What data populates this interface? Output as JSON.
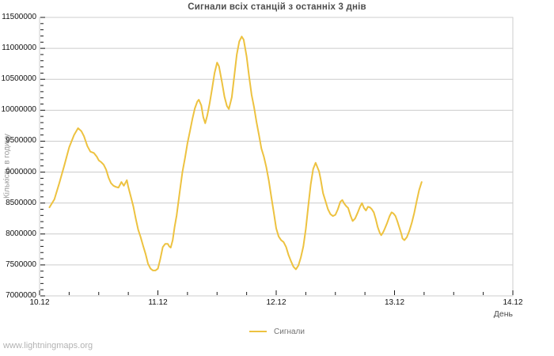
{
  "watermark": "www.lightningmaps.org",
  "chart_data": {
    "type": "line",
    "title": "Сигнали всіх станцій з останніх 3 днів",
    "xlabel": "День",
    "ylabel": "Кількість в годину",
    "legend": [
      "Сигнали"
    ],
    "legend_position": "bottom-center",
    "grid": true,
    "x_tick_labels": [
      "10.12",
      "11.12",
      "12.12",
      "13.12",
      "14.12"
    ],
    "x_range_hours": [
      0,
      96
    ],
    "x_major_step_hours": 24,
    "x_minor_step_hours": 6,
    "ylim": [
      7000000,
      11500000
    ],
    "y_tick_step": 500000,
    "y_minor_step": 100000,
    "y_tick_labels": [
      "7000000",
      "7500000",
      "8000000",
      "8500000",
      "9000000",
      "9500000",
      "10000000",
      "10500000",
      "11000000",
      "11500000"
    ],
    "line_color": "#edc240",
    "grid_color": "#cccccc",
    "tick_color": "#1a1a1a",
    "series": [
      {
        "name": "Сигнали",
        "x_unit": "hours from 10.12 00:00",
        "points": [
          [
            2.0,
            8430000
          ],
          [
            3.0,
            8560000
          ],
          [
            4.0,
            8820000
          ],
          [
            5.0,
            9100000
          ],
          [
            6.0,
            9400000
          ],
          [
            7.0,
            9600000
          ],
          [
            7.8,
            9710000
          ],
          [
            8.5,
            9660000
          ],
          [
            9.0,
            9580000
          ],
          [
            9.7,
            9420000
          ],
          [
            10.3,
            9330000
          ],
          [
            11.0,
            9310000
          ],
          [
            11.6,
            9250000
          ],
          [
            12.0,
            9190000
          ],
          [
            12.5,
            9160000
          ],
          [
            13.0,
            9120000
          ],
          [
            13.5,
            9040000
          ],
          [
            14.0,
            8910000
          ],
          [
            14.5,
            8820000
          ],
          [
            15.0,
            8780000
          ],
          [
            15.5,
            8760000
          ],
          [
            16.0,
            8750000
          ],
          [
            16.6,
            8840000
          ],
          [
            17.1,
            8780000
          ],
          [
            17.7,
            8870000
          ],
          [
            18.0,
            8760000
          ],
          [
            18.5,
            8610000
          ],
          [
            19.0,
            8450000
          ],
          [
            19.5,
            8250000
          ],
          [
            20.0,
            8070000
          ],
          [
            20.5,
            7950000
          ],
          [
            21.0,
            7810000
          ],
          [
            21.5,
            7680000
          ],
          [
            22.0,
            7520000
          ],
          [
            22.5,
            7440000
          ],
          [
            23.0,
            7410000
          ],
          [
            23.5,
            7410000
          ],
          [
            24.0,
            7440000
          ],
          [
            24.5,
            7600000
          ],
          [
            25.0,
            7790000
          ],
          [
            25.5,
            7840000
          ],
          [
            26.0,
            7840000
          ],
          [
            26.3,
            7800000
          ],
          [
            26.6,
            7780000
          ],
          [
            27.0,
            7900000
          ],
          [
            27.4,
            8120000
          ],
          [
            27.8,
            8300000
          ],
          [
            28.5,
            8720000
          ],
          [
            29.0,
            9010000
          ],
          [
            29.5,
            9230000
          ],
          [
            30.0,
            9470000
          ],
          [
            30.5,
            9660000
          ],
          [
            31.0,
            9860000
          ],
          [
            31.5,
            10030000
          ],
          [
            32.0,
            10140000
          ],
          [
            32.3,
            10170000
          ],
          [
            32.8,
            10080000
          ],
          [
            33.2,
            9890000
          ],
          [
            33.6,
            9790000
          ],
          [
            34.0,
            9910000
          ],
          [
            34.5,
            10110000
          ],
          [
            35.0,
            10350000
          ],
          [
            35.5,
            10600000
          ],
          [
            36.0,
            10770000
          ],
          [
            36.4,
            10710000
          ],
          [
            37.0,
            10450000
          ],
          [
            37.5,
            10220000
          ],
          [
            38.0,
            10070000
          ],
          [
            38.4,
            10020000
          ],
          [
            39.0,
            10210000
          ],
          [
            39.5,
            10560000
          ],
          [
            40.0,
            10900000
          ],
          [
            40.5,
            11110000
          ],
          [
            41.0,
            11190000
          ],
          [
            41.4,
            11140000
          ],
          [
            42.0,
            10870000
          ],
          [
            42.5,
            10550000
          ],
          [
            43.0,
            10250000
          ],
          [
            43.5,
            10050000
          ],
          [
            44.0,
            9810000
          ],
          [
            44.5,
            9600000
          ],
          [
            45.0,
            9380000
          ],
          [
            45.5,
            9250000
          ],
          [
            46.0,
            9080000
          ],
          [
            46.5,
            8860000
          ],
          [
            47.0,
            8600000
          ],
          [
            47.5,
            8350000
          ],
          [
            48.0,
            8090000
          ],
          [
            48.5,
            7960000
          ],
          [
            49.0,
            7900000
          ],
          [
            49.5,
            7870000
          ],
          [
            50.0,
            7790000
          ],
          [
            50.5,
            7660000
          ],
          [
            51.0,
            7560000
          ],
          [
            51.5,
            7470000
          ],
          [
            52.0,
            7430000
          ],
          [
            52.5,
            7490000
          ],
          [
            53.0,
            7620000
          ],
          [
            53.5,
            7800000
          ],
          [
            54.0,
            8080000
          ],
          [
            54.5,
            8450000
          ],
          [
            55.0,
            8800000
          ],
          [
            55.5,
            9050000
          ],
          [
            56.0,
            9150000
          ],
          [
            56.7,
            9010000
          ],
          [
            57.0,
            8890000
          ],
          [
            57.5,
            8660000
          ],
          [
            58.0,
            8530000
          ],
          [
            58.5,
            8400000
          ],
          [
            59.0,
            8320000
          ],
          [
            59.5,
            8290000
          ],
          [
            60.0,
            8310000
          ],
          [
            60.5,
            8400000
          ],
          [
            61.0,
            8520000
          ],
          [
            61.4,
            8550000
          ],
          [
            61.8,
            8490000
          ],
          [
            62.2,
            8450000
          ],
          [
            62.6,
            8420000
          ],
          [
            63.1,
            8290000
          ],
          [
            63.5,
            8210000
          ],
          [
            64.0,
            8250000
          ],
          [
            64.5,
            8340000
          ],
          [
            65.0,
            8440000
          ],
          [
            65.4,
            8500000
          ],
          [
            65.8,
            8420000
          ],
          [
            66.2,
            8380000
          ],
          [
            66.6,
            8440000
          ],
          [
            67.0,
            8430000
          ],
          [
            67.4,
            8400000
          ],
          [
            67.8,
            8350000
          ],
          [
            68.2,
            8240000
          ],
          [
            68.6,
            8110000
          ],
          [
            69.0,
            8020000
          ],
          [
            69.3,
            7980000
          ],
          [
            69.7,
            8030000
          ],
          [
            70.0,
            8080000
          ],
          [
            70.5,
            8180000
          ],
          [
            71.0,
            8290000
          ],
          [
            71.4,
            8350000
          ],
          [
            71.8,
            8330000
          ],
          [
            72.2,
            8290000
          ],
          [
            72.6,
            8200000
          ],
          [
            73.0,
            8100000
          ],
          [
            73.4,
            8000000
          ],
          [
            73.6,
            7930000
          ],
          [
            74.0,
            7900000
          ],
          [
            74.5,
            7950000
          ],
          [
            75.0,
            8050000
          ],
          [
            75.5,
            8180000
          ],
          [
            76.0,
            8340000
          ],
          [
            76.5,
            8530000
          ],
          [
            77.0,
            8710000
          ],
          [
            77.5,
            8840000
          ]
        ]
      }
    ]
  }
}
